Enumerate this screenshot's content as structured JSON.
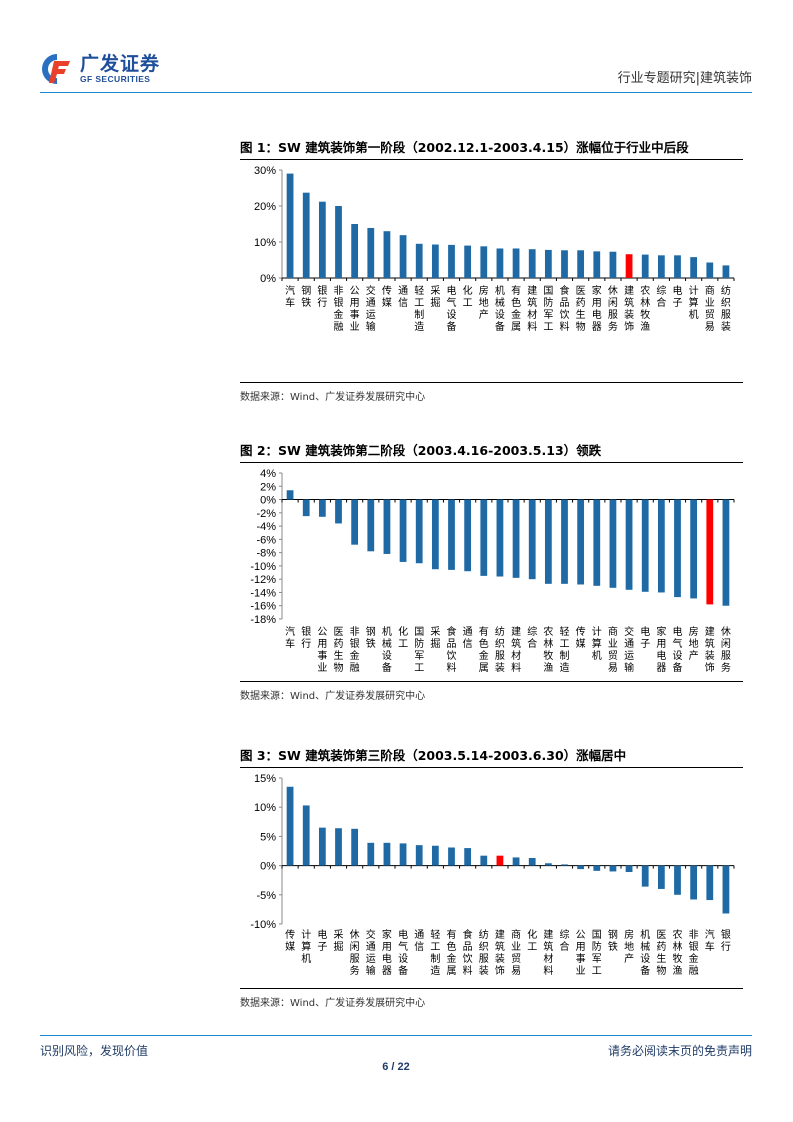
{
  "header": {
    "logo_cn": "广发证券",
    "logo_en": "GF SECURITIES",
    "section": "行业专题研究|建筑装饰"
  },
  "colors": {
    "bar": "#1f6aa5",
    "highlight": "#ff0000",
    "rule": "#1a8bd0",
    "brand": "#1f4e9a"
  },
  "figures": [
    {
      "title": "图 1：SW 建筑装饰第一阶段（2002.12.1-2003.4.15）涨幅位于行业中后段",
      "source": "数据来源：Wind、广发证券发展研究中心"
    },
    {
      "title": "图 2：SW 建筑装饰第二阶段（2003.4.16-2003.5.13）领跌",
      "source": "数据来源：Wind、广发证券发展研究中心"
    },
    {
      "title": "图 3：SW 建筑装饰第三阶段（2003.5.14-2003.6.30）涨幅居中",
      "source": "数据来源：Wind、广发证券发展研究中心"
    }
  ],
  "chart_data": [
    {
      "type": "bar",
      "title": "图 1：SW 建筑装饰第一阶段（2002.12.1-2003.4.15）涨幅位于行业中后段",
      "xlabel": "",
      "ylabel": "",
      "ylim": [
        0,
        30
      ],
      "yticks": [
        0,
        10,
        20,
        30
      ],
      "ytick_labels": [
        "0%",
        "10%",
        "20%",
        "30%"
      ],
      "grid": false,
      "highlight": "建筑装饰",
      "categories": [
        "汽车",
        "钢铁",
        "银行",
        "非银金融",
        "公用事业",
        "交通运输",
        "传媒",
        "通信",
        "轻工制造",
        "采掘",
        "电气设备",
        "化工",
        "房地产",
        "机械设备",
        "有色金属",
        "建筑材料",
        "国防军工",
        "食品饮料",
        "医药生物",
        "家用电器",
        "休闲服务",
        "建筑装饰",
        "农林牧渔",
        "综合",
        "电子",
        "计算机",
        "商业贸易",
        "纺织服装"
      ],
      "values": [
        29.0,
        23.7,
        21.2,
        20.0,
        15.0,
        13.9,
        13.0,
        11.9,
        9.5,
        9.3,
        9.2,
        9.0,
        8.8,
        8.2,
        8.2,
        8.0,
        7.8,
        7.7,
        7.7,
        7.4,
        7.3,
        6.6,
        6.5,
        6.3,
        6.3,
        5.8,
        4.3,
        3.5
      ]
    },
    {
      "type": "bar",
      "title": "图 2：SW 建筑装饰第二阶段（2003.4.16-2003.5.13）领跌",
      "xlabel": "",
      "ylabel": "",
      "ylim": [
        -18,
        4
      ],
      "yticks": [
        4,
        2,
        0,
        -2,
        -4,
        -6,
        -8,
        -10,
        -12,
        -14,
        -16,
        -18
      ],
      "ytick_labels": [
        "4%",
        "2%",
        "0%",
        "-2%",
        "-4%",
        "-6%",
        "-8%",
        "-10%",
        "-12%",
        "-14%",
        "-16%",
        "-18%"
      ],
      "grid": false,
      "highlight": "建筑装饰",
      "categories": [
        "汽车",
        "银行",
        "公用事业",
        "医药生物",
        "非银金融",
        "钢铁",
        "机械设备",
        "化工",
        "国防军工",
        "采掘",
        "食品饮料",
        "通信",
        "有色金属",
        "纺织服装",
        "建筑材料",
        "综合",
        "农林牧渔",
        "轻工制造",
        "传媒",
        "计算机",
        "商业贸易",
        "交通运输",
        "电子",
        "家用电器",
        "电气设备",
        "房地产",
        "建筑装饰",
        "休闲服务"
      ],
      "values": [
        1.4,
        -2.5,
        -2.6,
        -3.6,
        -6.8,
        -7.8,
        -8.2,
        -9.4,
        -9.6,
        -10.5,
        -10.6,
        -10.8,
        -11.5,
        -11.6,
        -11.8,
        -12.0,
        -12.7,
        -12.7,
        -12.8,
        -13.0,
        -13.3,
        -13.6,
        -13.9,
        -14.0,
        -14.7,
        -14.9,
        -15.8,
        -16.0
      ]
    },
    {
      "type": "bar",
      "title": "图 3：SW 建筑装饰第三阶段（2003.5.14-2003.6.30）涨幅居中",
      "xlabel": "",
      "ylabel": "",
      "ylim": [
        -10,
        15
      ],
      "yticks": [
        15,
        10,
        5,
        0,
        -5,
        -10
      ],
      "ytick_labels": [
        "15%",
        "10%",
        "5%",
        "0%",
        "-5%",
        "-10%"
      ],
      "grid": false,
      "highlight": "建筑装饰",
      "categories": [
        "传媒",
        "计算机",
        "电子",
        "采掘",
        "休闲服务",
        "交通运输",
        "家用电器",
        "电气设备",
        "通信",
        "轻工制造",
        "有色金属",
        "食品饮料",
        "纺织服装",
        "建筑装饰",
        "商业贸易",
        "化工",
        "建筑材料",
        "综合",
        "公用事业",
        "国防军工",
        "钢铁",
        "房地产",
        "机械设备",
        "医药生物",
        "农林牧渔",
        "非银金融",
        "汽车",
        "银行"
      ],
      "values": [
        13.5,
        10.3,
        6.5,
        6.4,
        6.3,
        3.9,
        3.9,
        3.8,
        3.5,
        3.4,
        3.1,
        3.0,
        1.7,
        1.7,
        1.4,
        1.3,
        0.4,
        0.2,
        -0.6,
        -0.9,
        -1.0,
        -1.1,
        -3.6,
        -4.0,
        -5.0,
        -5.8,
        -5.9,
        -8.2
      ]
    }
  ],
  "footer": {
    "left": "识别风险，发现价值",
    "right": "请务必阅读末页的免责声明",
    "page": "6 / 22"
  }
}
